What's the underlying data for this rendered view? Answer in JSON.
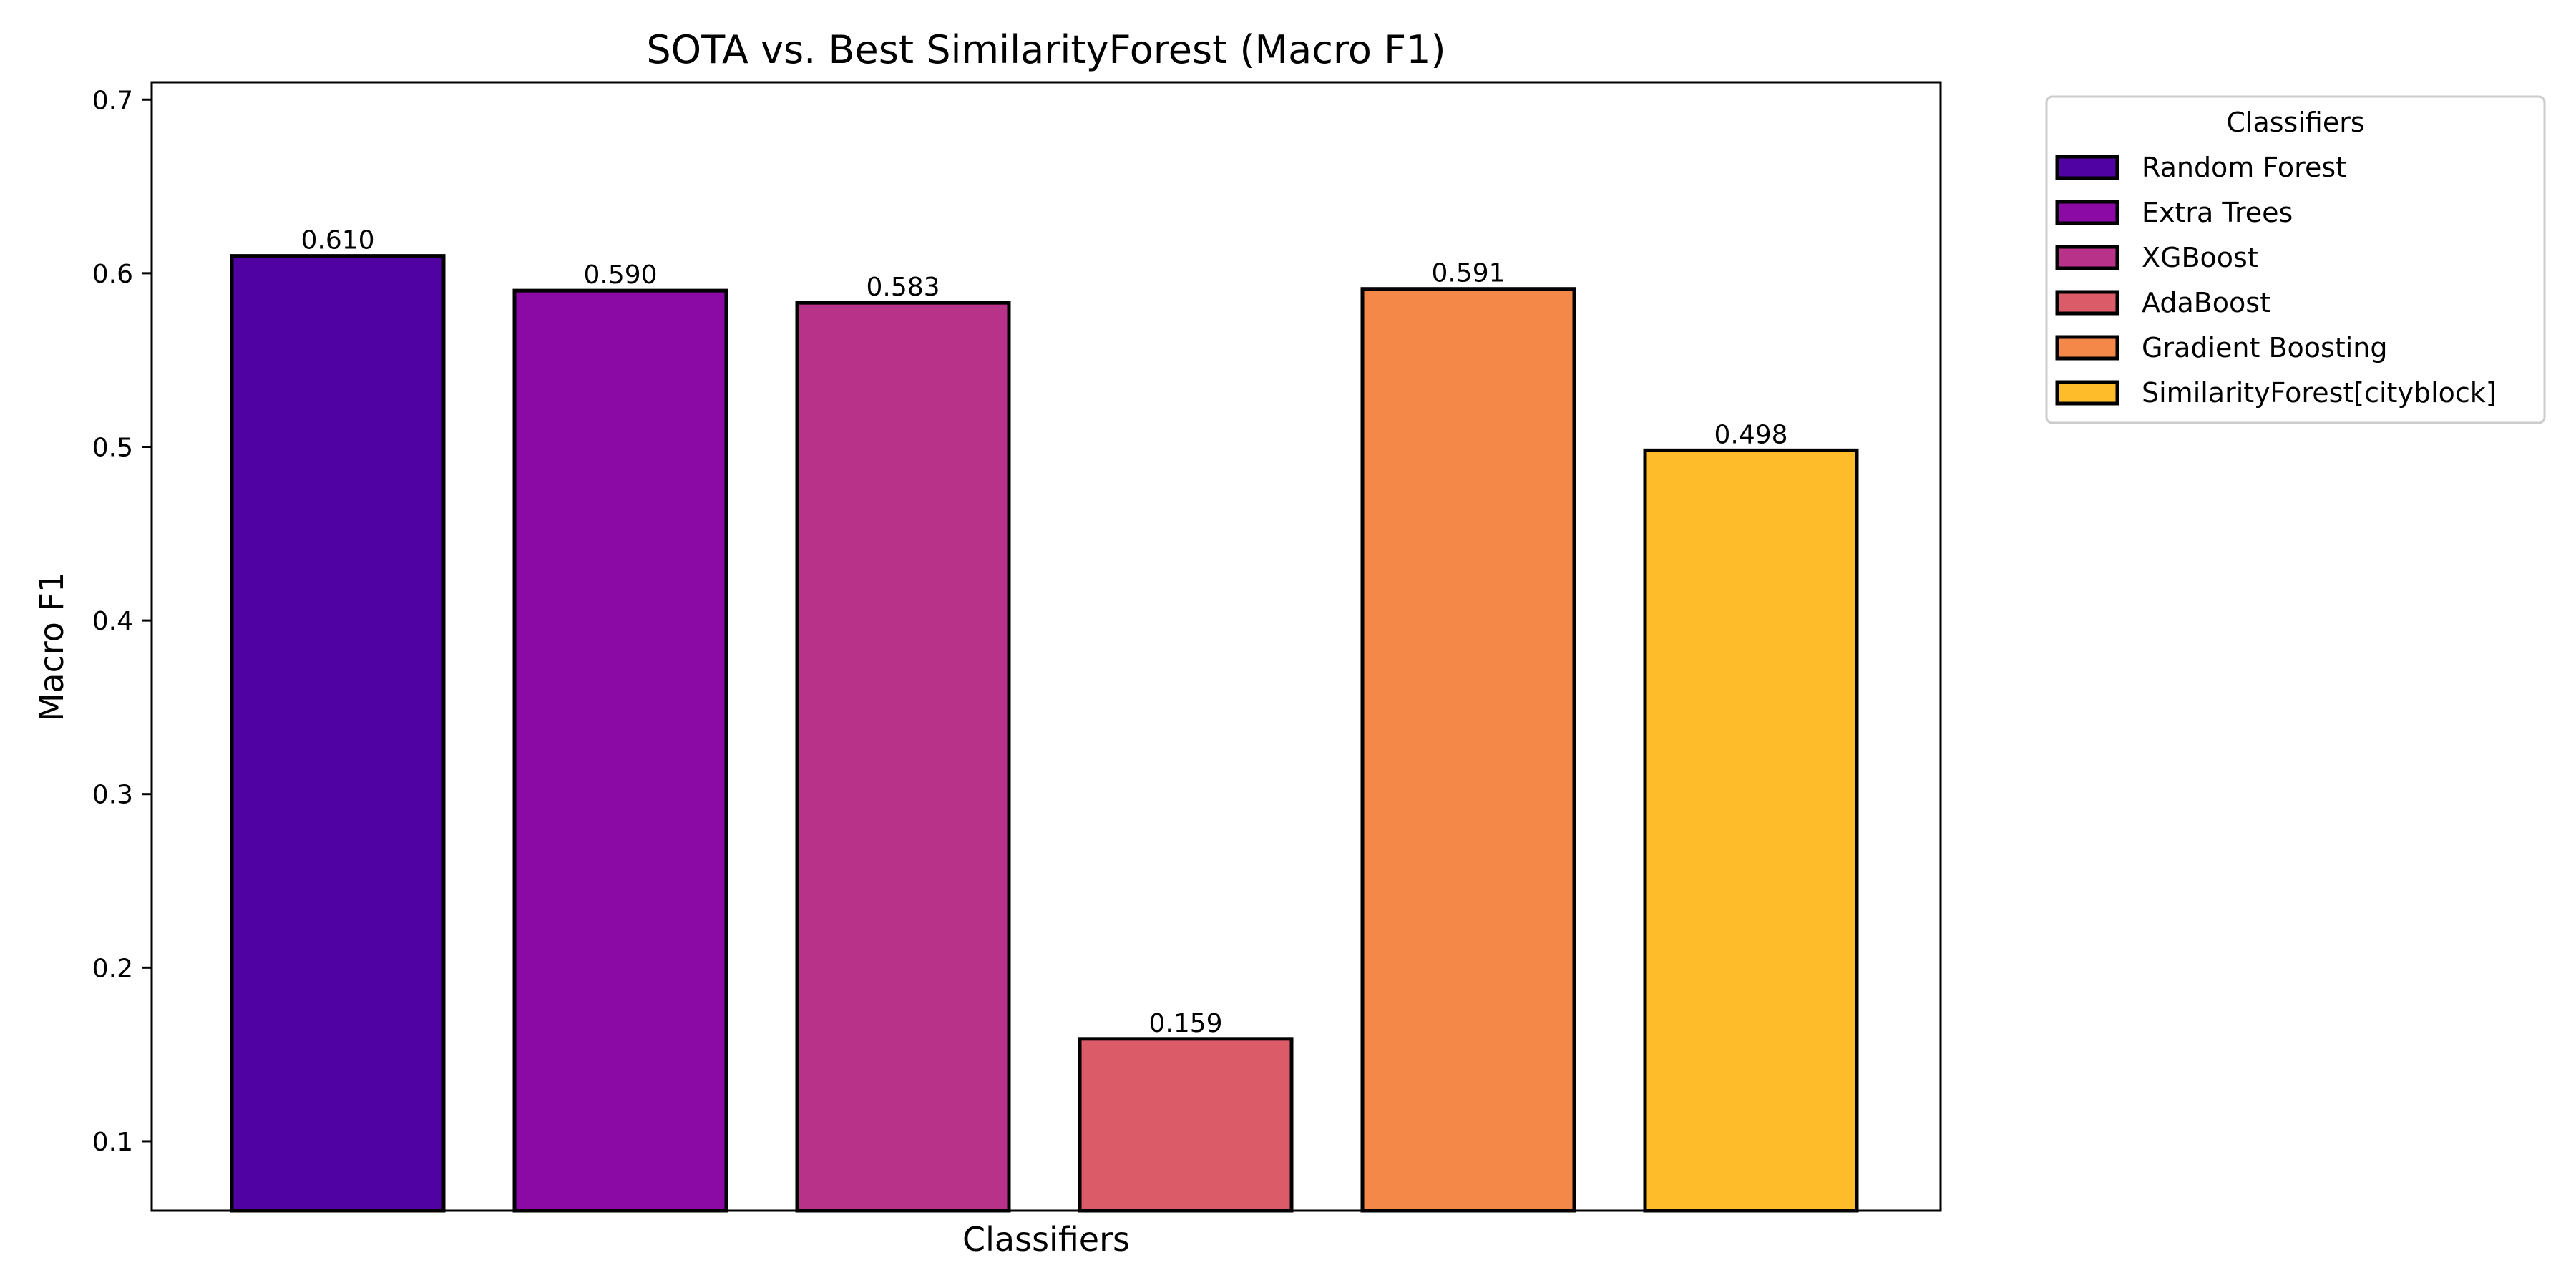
{
  "chart_data": {
    "type": "bar",
    "title": "SOTA vs. Best SimilarityForest (Macro F1)",
    "xlabel": "Classifiers",
    "ylabel": "Macro F1",
    "ylim": [
      0.06,
      0.71
    ],
    "yticks": [
      "0.1",
      "0.2",
      "0.3",
      "0.4",
      "0.5",
      "0.6",
      "0.7"
    ],
    "grid": false,
    "legend_title": "Classifiers",
    "legend_position": "outside-top-right",
    "categories": [
      "Random Forest",
      "Extra Trees",
      "XGBoost",
      "AdaBoost",
      "Gradient Boosting",
      "SimilarityForest[cityblock]"
    ],
    "values": [
      0.61,
      0.59,
      0.583,
      0.159,
      0.591,
      0.498
    ],
    "value_labels": [
      "0.610",
      "0.590",
      "0.583",
      "0.159",
      "0.591",
      "0.498"
    ],
    "colors": [
      "#5002a2",
      "#8b0aa5",
      "#b83289",
      "#db5c68",
      "#f48849",
      "#febc2a"
    ]
  }
}
